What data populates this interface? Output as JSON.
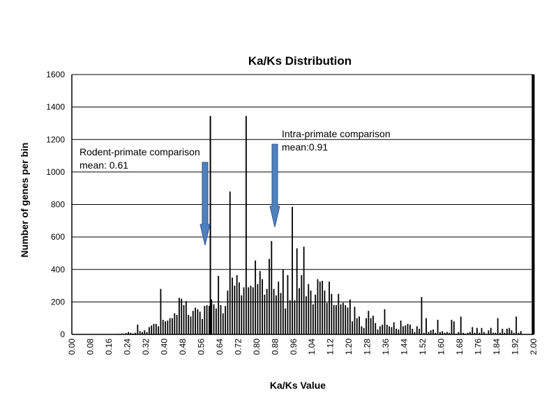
{
  "chart_data": {
    "type": "bar",
    "title": "Ka/Ks Distribution",
    "xlabel": "Ka/Ks Value",
    "ylabel": "Number of genes per bin",
    "ylim": [
      0,
      1600
    ],
    "y_ticks": [
      "0",
      "200",
      "400",
      "600",
      "800",
      "1000",
      "1200",
      "1400",
      "1600"
    ],
    "x_tick_labels": [
      "0.00",
      "0.08",
      "0.16",
      "0.24",
      "0.32",
      "0.40",
      "0.48",
      "0.56",
      "0.64",
      "0.72",
      "0.80",
      "0.88",
      "0.96",
      "1.04",
      "1.12",
      "1.20",
      "1.28",
      "1.36",
      "1.44",
      "1.52",
      "1.60",
      "1.68",
      "1.76",
      "1.84",
      "1.92",
      "2.00"
    ],
    "grid": true,
    "legend": "none",
    "bin_width": 0.01,
    "x_start": 0.0,
    "values": [
      0,
      0,
      0,
      0,
      0,
      0,
      0,
      0,
      0,
      0,
      0,
      0,
      0,
      0,
      0,
      0,
      0,
      0,
      2,
      3,
      3,
      5,
      5,
      8,
      15,
      10,
      6,
      10,
      60,
      20,
      15,
      25,
      15,
      45,
      55,
      65,
      65,
      50,
      280,
      90,
      80,
      85,
      100,
      100,
      130,
      120,
      225,
      220,
      180,
      205,
      120,
      110,
      145,
      165,
      155,
      140,
      95,
      175,
      180,
      175,
      215,
      185,
      160,
      360,
      180,
      130,
      175,
      270,
      880,
      350,
      300,
      365,
      320,
      240,
      290,
      1345,
      290,
      300,
      290,
      455,
      310,
      390,
      340,
      245,
      280,
      465,
      575,
      280,
      240,
      325,
      255,
      400,
      160,
      365,
      210,
      785,
      210,
      530,
      285,
      365,
      540,
      235,
      310,
      270,
      185,
      245,
      340,
      325,
      330,
      270,
      195,
      325,
      250,
      180,
      180,
      250,
      185,
      195,
      180,
      165,
      215,
      80,
      170,
      100,
      110,
      50,
      40,
      100,
      145,
      100,
      115,
      70,
      30,
      50,
      60,
      155,
      60,
      50,
      45,
      75,
      35,
      30,
      85,
      50,
      55,
      65,
      60,
      35,
      15,
      50,
      35,
      230,
      10,
      100,
      15,
      25,
      30,
      10,
      90,
      15,
      20,
      10,
      15,
      10,
      90,
      80,
      5,
      15,
      110,
      10,
      5,
      10,
      15,
      45,
      10,
      40,
      10,
      40,
      15,
      5,
      25,
      40,
      10,
      10,
      100,
      10,
      35,
      10,
      35,
      40,
      25,
      10,
      110,
      10,
      20
    ],
    "mean_lines": [
      {
        "x": 0.6,
        "stub_value": 1345
      },
      {
        "x": 1.995,
        "stub_value": 1600
      }
    ],
    "annotations": [
      {
        "lines": [
          "Rodent-primate comparison",
          "mean: 0.61"
        ],
        "x": 0.61
      },
      {
        "lines": [
          "Intra-primate comparison",
          "mean:0.91"
        ],
        "x": 0.91
      }
    ],
    "colors": {
      "bar": "#000000",
      "arrow_fill": "#4f81bd",
      "arrow_stroke": "#2f5597",
      "grid": "#000000"
    }
  }
}
